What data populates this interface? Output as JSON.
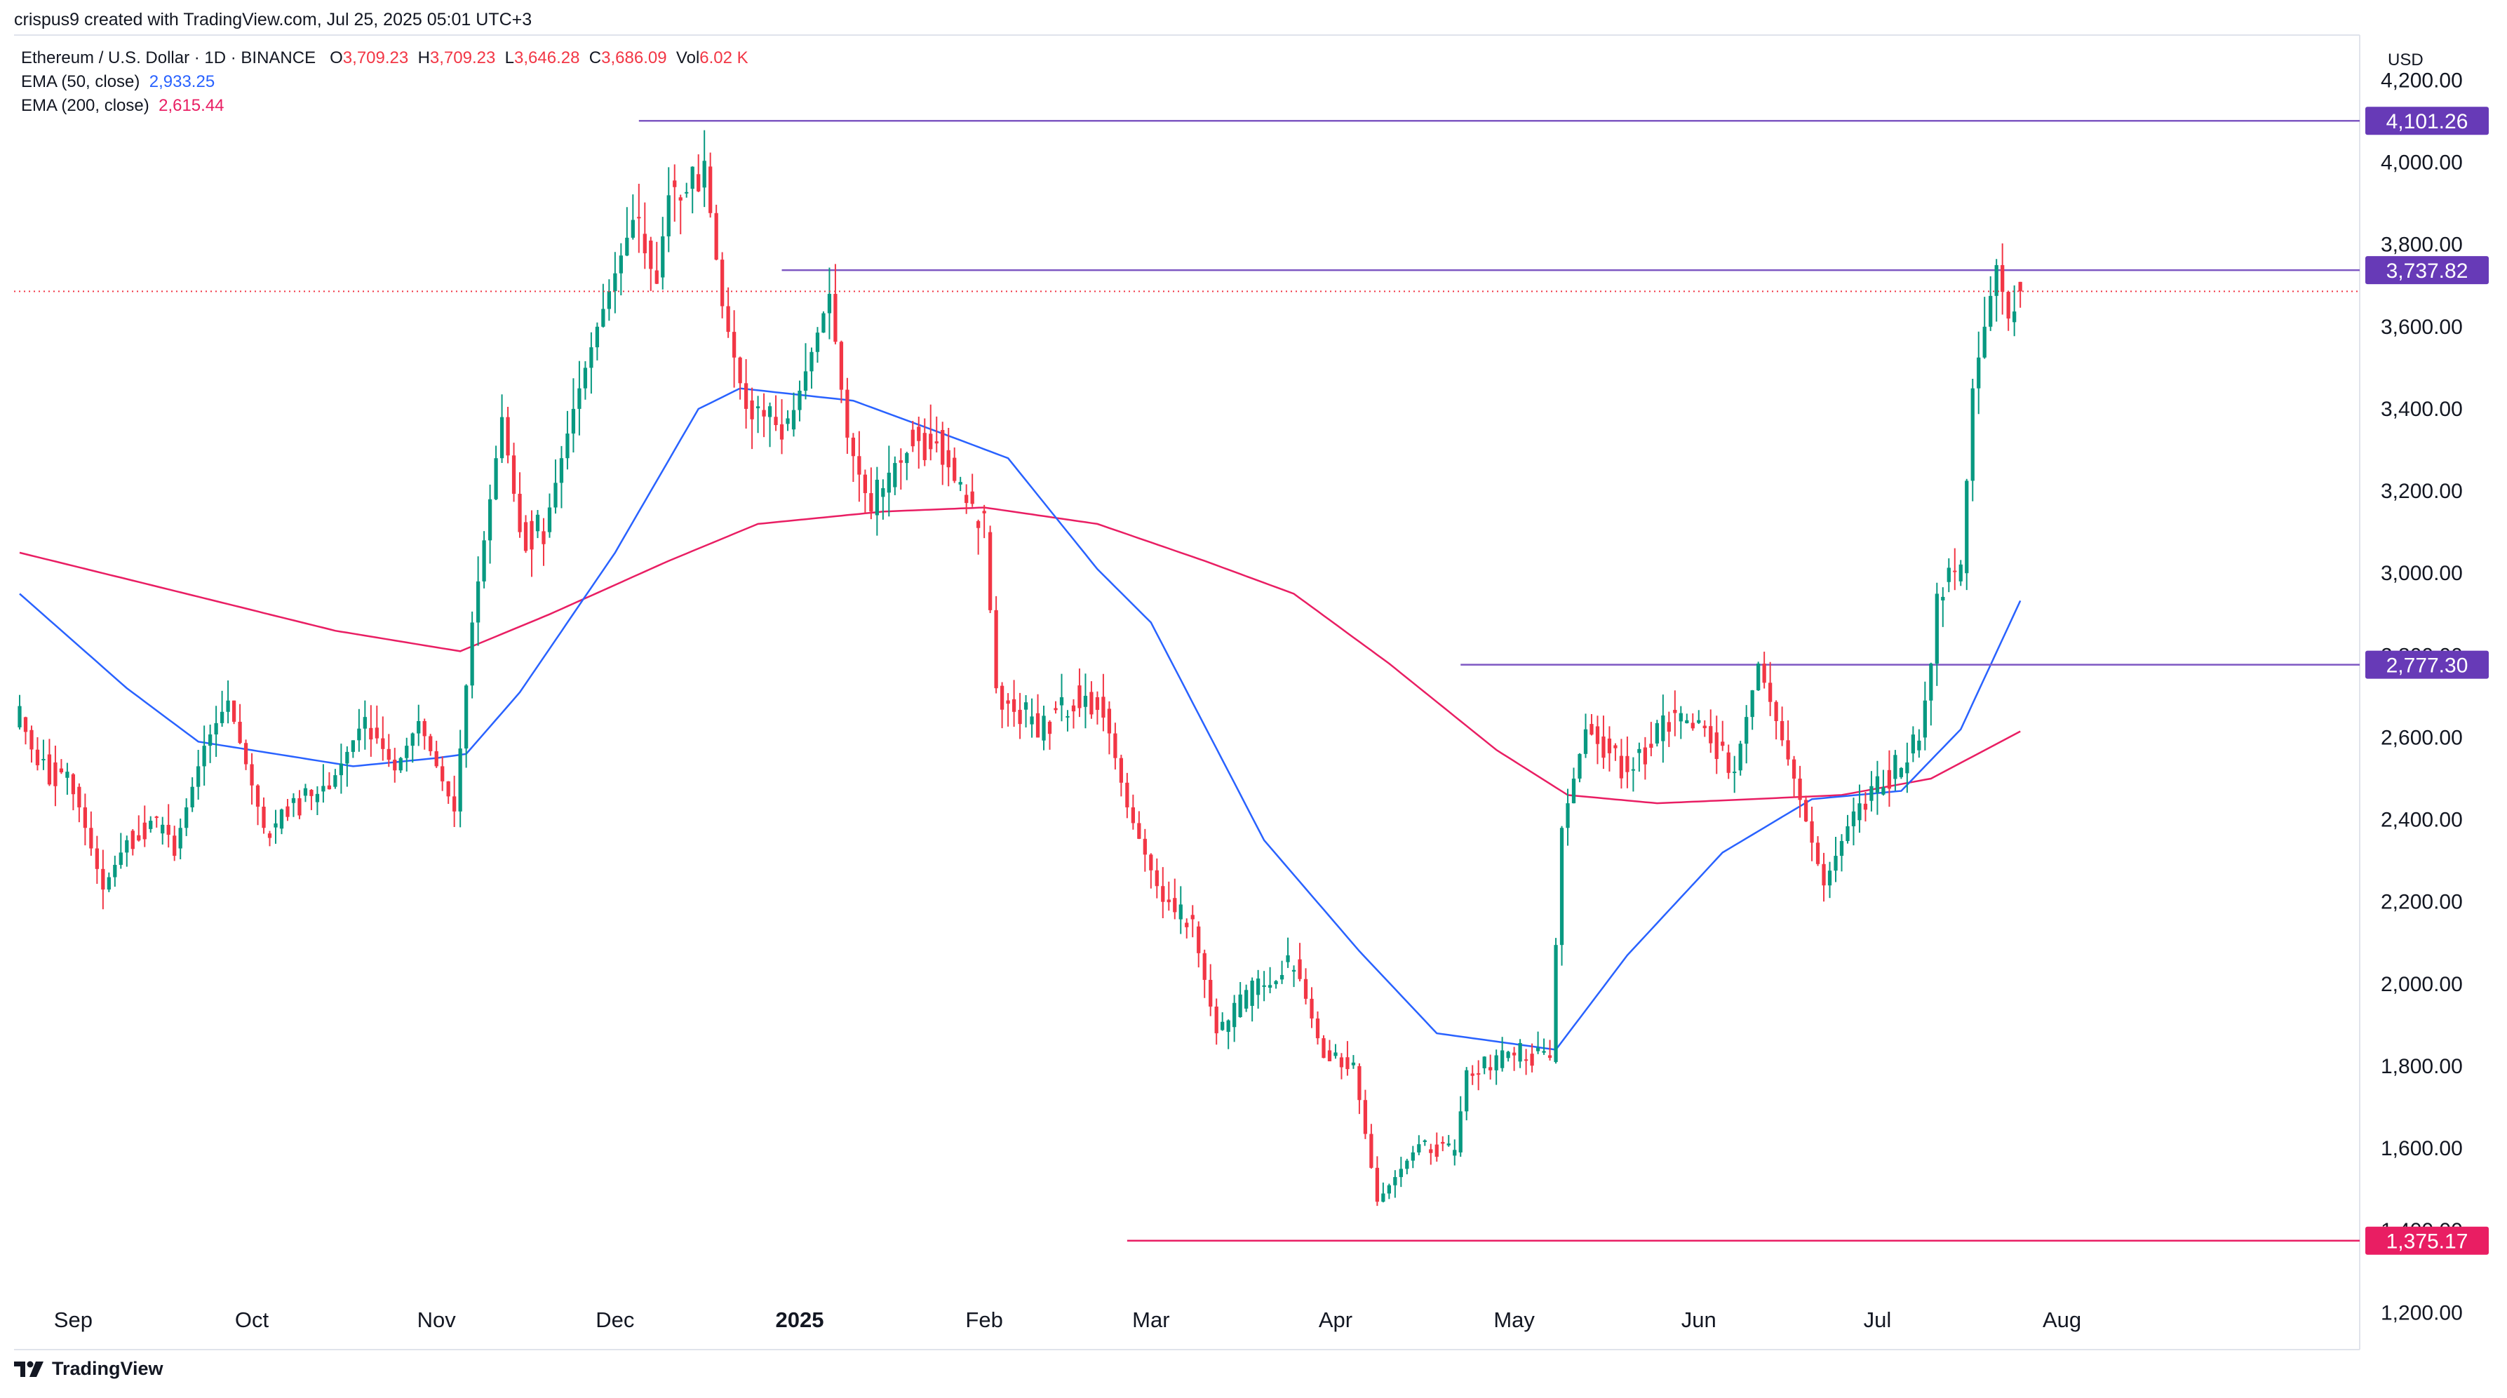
{
  "header": {
    "author_line": "crispus9 created with TradingView.com, Jul 25, 2025 05:01 UTC+3"
  },
  "legend": {
    "symbol": "Ethereum / U.S. Dollar · 1D · BINANCE",
    "o_label": "O",
    "o_value": "3,709.23",
    "h_label": "H",
    "h_value": "3,709.23",
    "l_label": "L",
    "l_value": "3,646.28",
    "c_label": "C",
    "c_value": "3,686.09",
    "vol_label": "Vol",
    "vol_value": "6.02 K",
    "ema50_label": "EMA (50, close)",
    "ema50_value": "2,933.25",
    "ema200_label": "EMA (200, close)",
    "ema200_value": "2,615.44"
  },
  "currency": "USD",
  "brand": "TradingView",
  "chart_data": {
    "type": "candlestick",
    "colors": {
      "up": "#089981",
      "down": "#f23645",
      "ema50": "#2962ff",
      "ema200": "#e91e63",
      "level_line": "#7e57c2",
      "level_badge": "#673ab7",
      "support_badge": "#e91e63"
    },
    "ylim": [
      1110,
      4310
    ],
    "y_ticks": [
      1200,
      1400,
      1600,
      1800,
      2000,
      2200,
      2400,
      2600,
      2800,
      3000,
      3200,
      3400,
      3600,
      3800,
      4000,
      4200
    ],
    "y_tick_labels": [
      "1,200.00",
      "1,400.00",
      "1,600.00",
      "1,800.00",
      "2,000.00",
      "2,200.00",
      "2,400.00",
      "2,600.00",
      "2,800.00",
      "3,000.00",
      "3,200.00",
      "3,400.00",
      "3,600.00",
      "3,800.00",
      "4,000.00",
      "4,200.00"
    ],
    "x_labels": [
      {
        "date": "2024-09-01",
        "label": "Sep",
        "bold": false
      },
      {
        "date": "2024-10-01",
        "label": "Oct",
        "bold": false
      },
      {
        "date": "2024-11-01",
        "label": "Nov",
        "bold": false
      },
      {
        "date": "2024-12-01",
        "label": "Dec",
        "bold": false
      },
      {
        "date": "2025-01-01",
        "label": "2025",
        "bold": true
      },
      {
        "date": "2025-02-01",
        "label": "Feb",
        "bold": false
      },
      {
        "date": "2025-03-01",
        "label": "Mar",
        "bold": false
      },
      {
        "date": "2025-04-01",
        "label": "Apr",
        "bold": false
      },
      {
        "date": "2025-05-01",
        "label": "May",
        "bold": false
      },
      {
        "date": "2025-06-01",
        "label": "Jun",
        "bold": false
      },
      {
        "date": "2025-07-01",
        "label": "Jul",
        "bold": false
      },
      {
        "date": "2025-08-01",
        "label": "Aug",
        "bold": false
      }
    ],
    "horizontal_levels": [
      {
        "value": 4101.26,
        "label": "4,101.26",
        "from_date": "2024-12-05",
        "kind": "resistance"
      },
      {
        "value": 3737.82,
        "label": "3,737.82",
        "from_date": "2024-12-29",
        "kind": "resistance"
      },
      {
        "value": 2777.3,
        "label": "2,777.30",
        "from_date": "2025-04-22",
        "kind": "resistance"
      },
      {
        "value": 1375.17,
        "label": "1,375.17",
        "from_date": "2025-02-25",
        "kind": "support"
      }
    ],
    "last_price": 3686.09,
    "start_date": "2024-08-23",
    "end_date": "2025-07-25",
    "date_domain": [
      "2024-08-23",
      "2025-09-20"
    ],
    "anchors": [
      [
        "2024-08-23",
        2640
      ],
      [
        "2024-08-28",
        2520
      ],
      [
        "2024-09-01",
        2480
      ],
      [
        "2024-09-06",
        2230
      ],
      [
        "2024-09-10",
        2350
      ],
      [
        "2024-09-14",
        2400
      ],
      [
        "2024-09-18",
        2330
      ],
      [
        "2024-09-23",
        2580
      ],
      [
        "2024-09-27",
        2690
      ],
      [
        "2024-10-03",
        2380
      ],
      [
        "2024-10-09",
        2440
      ],
      [
        "2024-10-14",
        2480
      ],
      [
        "2024-10-20",
        2650
      ],
      [
        "2024-10-25",
        2520
      ],
      [
        "2024-10-29",
        2640
      ],
      [
        "2024-11-04",
        2420
      ],
      [
        "2024-11-07",
        2880
      ],
      [
        "2024-11-12",
        3380
      ],
      [
        "2024-11-15",
        3100
      ],
      [
        "2024-11-19",
        3100
      ],
      [
        "2024-11-24",
        3400
      ],
      [
        "2024-11-28",
        3600
      ],
      [
        "2024-12-04",
        3860
      ],
      [
        "2024-12-08",
        3720
      ],
      [
        "2024-12-10",
        3920
      ],
      [
        "2024-12-16",
        3990
      ],
      [
        "2024-12-19",
        3650
      ],
      [
        "2024-12-23",
        3400
      ],
      [
        "2024-12-30",
        3350
      ],
      [
        "2025-01-06",
        3680
      ],
      [
        "2025-01-09",
        3330
      ],
      [
        "2025-01-13",
        3150
      ],
      [
        "2025-01-19",
        3330
      ],
      [
        "2025-01-24",
        3320
      ],
      [
        "2025-01-28",
        3200
      ],
      [
        "2025-02-01",
        3100
      ],
      [
        "2025-02-03",
        2720
      ],
      [
        "2025-02-10",
        2620
      ],
      [
        "2025-02-16",
        2700
      ],
      [
        "2025-02-21",
        2670
      ],
      [
        "2025-02-25",
        2430
      ],
      [
        "2025-03-03",
        2200
      ],
      [
        "2025-03-08",
        2140
      ],
      [
        "2025-03-12",
        1880
      ],
      [
        "2025-03-19",
        2000
      ],
      [
        "2025-03-25",
        2060
      ],
      [
        "2025-03-30",
        1820
      ],
      [
        "2025-04-04",
        1800
      ],
      [
        "2025-04-08",
        1470
      ],
      [
        "2025-04-15",
        1610
      ],
      [
        "2025-04-21",
        1590
      ],
      [
        "2025-04-23",
        1790
      ],
      [
        "2025-05-02",
        1830
      ],
      [
        "2025-05-07",
        1810
      ],
      [
        "2025-05-09",
        2380
      ],
      [
        "2025-05-13",
        2620
      ],
      [
        "2025-05-20",
        2520
      ],
      [
        "2025-05-27",
        2640
      ],
      [
        "2025-06-03",
        2600
      ],
      [
        "2025-06-07",
        2520
      ],
      [
        "2025-06-11",
        2780
      ],
      [
        "2025-06-17",
        2500
      ],
      [
        "2025-06-22",
        2240
      ],
      [
        "2025-06-27",
        2420
      ],
      [
        "2025-07-02",
        2500
      ],
      [
        "2025-07-06",
        2550
      ],
      [
        "2025-07-08",
        2600
      ],
      [
        "2025-07-10",
        2780
      ],
      [
        "2025-07-11",
        2950
      ],
      [
        "2025-07-15",
        3000
      ],
      [
        "2025-07-17",
        3450
      ],
      [
        "2025-07-21",
        3750
      ],
      [
        "2025-07-23",
        3620
      ],
      [
        "2025-07-25",
        3686
      ]
    ],
    "ema50": [
      [
        "2024-08-23",
        2950
      ],
      [
        "2024-09-10",
        2720
      ],
      [
        "2024-09-22",
        2590
      ],
      [
        "2024-10-05",
        2560
      ],
      [
        "2024-10-18",
        2530
      ],
      [
        "2024-11-01",
        2550
      ],
      [
        "2024-11-06",
        2560
      ],
      [
        "2024-11-15",
        2710
      ],
      [
        "2024-12-01",
        3050
      ],
      [
        "2024-12-15",
        3400
      ],
      [
        "2024-12-22",
        3450
      ],
      [
        "2025-01-10",
        3420
      ],
      [
        "2025-01-25",
        3340
      ],
      [
        "2025-02-05",
        3280
      ],
      [
        "2025-02-20",
        3010
      ],
      [
        "2025-03-01",
        2880
      ],
      [
        "2025-03-20",
        2350
      ],
      [
        "2025-04-05",
        2080
      ],
      [
        "2025-04-18",
        1880
      ],
      [
        "2025-05-08",
        1840
      ],
      [
        "2025-05-20",
        2070
      ],
      [
        "2025-06-05",
        2320
      ],
      [
        "2025-06-20",
        2450
      ],
      [
        "2025-07-05",
        2470
      ],
      [
        "2025-07-15",
        2620
      ],
      [
        "2025-07-25",
        2933
      ]
    ],
    "ema200": [
      [
        "2024-08-23",
        3050
      ],
      [
        "2024-09-20",
        2950
      ],
      [
        "2024-10-15",
        2860
      ],
      [
        "2024-11-05",
        2810
      ],
      [
        "2024-11-20",
        2900
      ],
      [
        "2024-12-10",
        3030
      ],
      [
        "2024-12-25",
        3120
      ],
      [
        "2025-01-15",
        3150
      ],
      [
        "2025-02-01",
        3160
      ],
      [
        "2025-02-20",
        3120
      ],
      [
        "2025-03-10",
        3030
      ],
      [
        "2025-03-25",
        2950
      ],
      [
        "2025-04-10",
        2780
      ],
      [
        "2025-04-28",
        2570
      ],
      [
        "2025-05-10",
        2460
      ],
      [
        "2025-05-25",
        2440
      ],
      [
        "2025-06-10",
        2450
      ],
      [
        "2025-06-25",
        2460
      ],
      [
        "2025-07-10",
        2500
      ],
      [
        "2025-07-25",
        2615
      ]
    ]
  }
}
